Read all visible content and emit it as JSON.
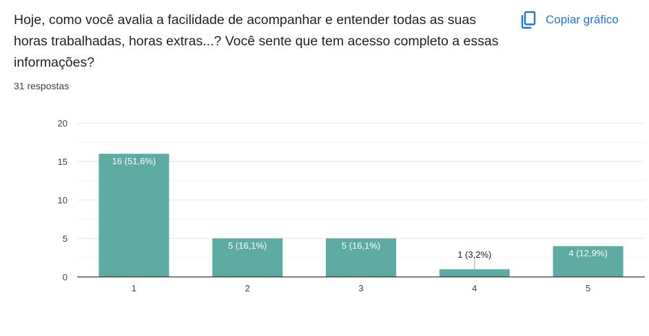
{
  "header": {
    "question": "Hoje, como você avalia a facilidade de acompanhar e entender todas as suas horas trabalhadas, horas extras...? Você sente que tem acesso completo a essas informações?",
    "responses": "31 respostas",
    "copy_label": "Copiar gráfico",
    "copy_icon": "copy-icon"
  },
  "colors": {
    "bar": "#5eaba4",
    "accent": "#1a73e8",
    "grid": "#ececec",
    "axis": "#333333"
  },
  "chart_data": {
    "type": "bar",
    "categories": [
      "1",
      "2",
      "3",
      "4",
      "5"
    ],
    "values": [
      16,
      5,
      5,
      1,
      4
    ],
    "data_labels": [
      "16 (51,6%)",
      "5 (16,1%)",
      "5 (16,1%)",
      "1 (3,2%)",
      "4 (12,9%)"
    ],
    "ylim": [
      0,
      20
    ],
    "yticks": [
      0,
      5,
      10,
      15,
      20
    ],
    "grid": true,
    "xlabel": "",
    "ylabel": ""
  }
}
